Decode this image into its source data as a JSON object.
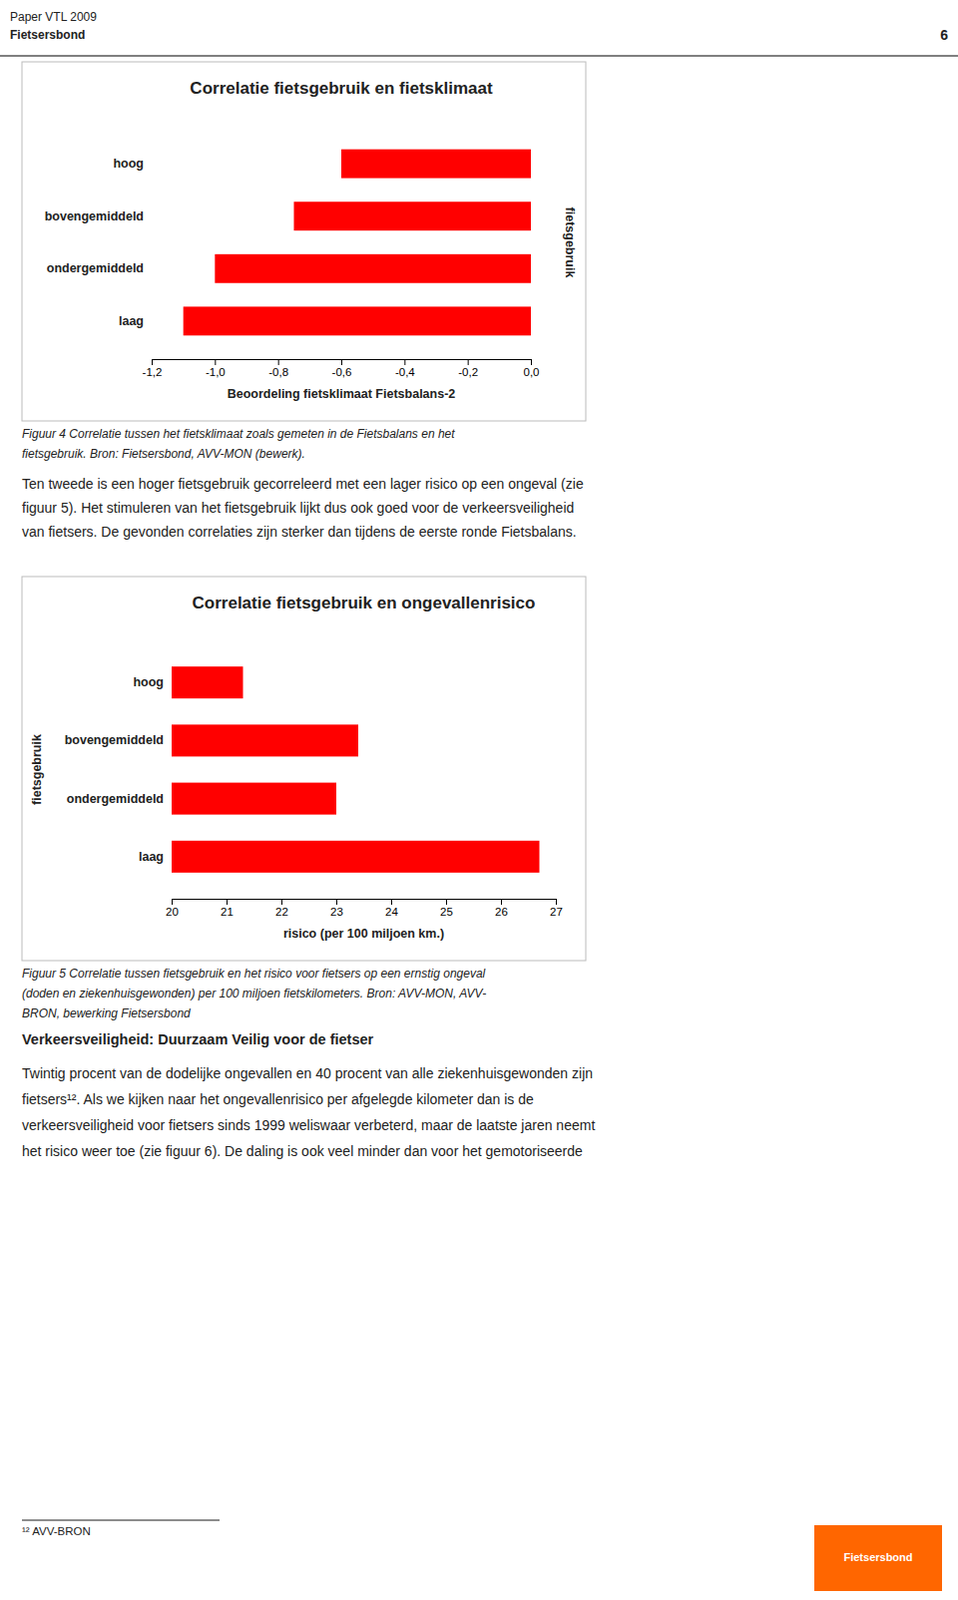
{
  "header_line1": "Paper VTL 2009",
  "header_line2": "Fietsersbond",
  "header_page": "6",
  "chart_data": [
    {
      "type": "bar",
      "orientation": "horizontal",
      "title": "Correlatie fietsgebruik en fietsklimaat",
      "categories": [
        "laag",
        "ondergemiddeld",
        "bovengemiddeld",
        "hoog"
      ],
      "values": [
        -1.1,
        -1.0,
        -0.75,
        -0.6
      ],
      "color": "#ff0000",
      "xlim": [
        -1.2,
        0.0
      ],
      "xticks": [
        {
          "value": -1.2,
          "label": "-1,2"
        },
        {
          "value": -1.0,
          "label": "-1,0"
        },
        {
          "value": -0.8,
          "label": "-0,8"
        },
        {
          "value": -0.6,
          "label": "-0,6"
        },
        {
          "value": -0.4,
          "label": "-0,4"
        },
        {
          "value": -0.2,
          "label": "-0,2"
        },
        {
          "value": 0.0,
          "label": "0,0"
        }
      ],
      "xlabel": "Beoordeling fietsklimaat Fietsbalans-2",
      "ylabel": "fietsgebruik",
      "grid": false
    },
    {
      "type": "bar",
      "orientation": "horizontal",
      "title": "Correlatie fietsgebruik en ongevallenrisico",
      "categories": [
        "laag",
        "ondergemiddeld",
        "bovengemiddeld",
        "hoog"
      ],
      "values": [
        26.7,
        23.0,
        23.4,
        21.3
      ],
      "color": "#ff0000",
      "xlim": [
        20,
        27
      ],
      "xticks": [
        20,
        21,
        22,
        23,
        24,
        25,
        26,
        27
      ],
      "xlabel": "risico (per 100 miljoen km.)",
      "ylabel": "fietsgebruik",
      "grid": false
    }
  ],
  "caption1": [
    "Figuur 4 Correlatie tussen het fietsklimaat zoals gemeten in de Fietsbalans en het",
    "fietsgebruik. Bron: Fietsersbond, AVV-MON (bewerk)."
  ],
  "body1": [
    "Ten tweede is een hoger fietsgebruik gecorreleerd met een lager risico op een ongeval (zie",
    "figuur 5). Het stimuleren van het fietsgebruik lijkt dus ook goed voor de verkeersveiligheid",
    "van fietsers. De gevonden correlaties zijn sterker dan tijdens de eerste ronde Fietsbalans."
  ],
  "caption2": [
    "Figuur 5 Correlatie tussen fietsgebruik en het risico voor fietsers op een ernstig ongeval",
    "(doden en ziekenhuisgewonden) per 100 miljoen fietskilometers. Bron: AVV-MON, AVV-",
    "BRON, bewerking Fietsersbond"
  ],
  "section_title": "Verkeersveiligheid: Duurzaam Veilig voor de fietser",
  "body2": [
    "Twintig procent van de dodelijke ongevallen en 40 procent van alle ziekenhuisgewonden zijn",
    "fietsers¹². Als we kijken naar het ongevallenrisico per afgelegde kilometer dan is de",
    "verkeersveiligheid voor fietsers sinds 1999 weliswaar verbeterd, maar de laatste jaren neemt",
    "het risico weer toe (zie figuur 6). De daling is ook veel minder dan voor het gemotoriseerde"
  ],
  "footer_note": "¹² AVV-BRON",
  "logo_text": "Fietsersbond",
  "logo_color": "#FF6600"
}
